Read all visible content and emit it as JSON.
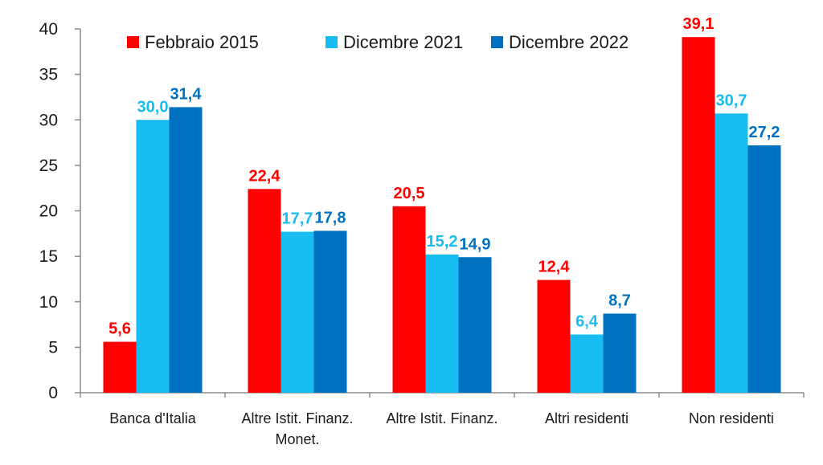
{
  "chart_data": {
    "type": "bar",
    "title": "",
    "xlabel": "",
    "ylabel": "",
    "ylim": [
      0,
      40
    ],
    "yticks": [
      "0",
      "5",
      "10",
      "15",
      "20",
      "25",
      "30",
      "35",
      "40"
    ],
    "grid": false,
    "legend_position": "top",
    "categories": [
      [
        "Banca d'Italia"
      ],
      [
        "Altre Istit. Finanz.",
        "Monet."
      ],
      [
        "Altre Istit. Finanz."
      ],
      [
        "Altri residenti"
      ],
      [
        "Non residenti"
      ]
    ],
    "series": [
      {
        "name": "Febbraio 2015",
        "color": "#ff0000",
        "values": [
          5.6,
          22.4,
          20.5,
          12.4,
          39.1
        ],
        "labels": [
          "5,6",
          "22,4",
          "20,5",
          "12,4",
          "39,1"
        ]
      },
      {
        "name": "Dicembre 2021",
        "color": "#17bdf0",
        "values": [
          30.0,
          17.7,
          15.2,
          6.4,
          30.7
        ],
        "labels": [
          "30,0",
          "17,7",
          "15,2",
          "6,4",
          "30,7"
        ]
      },
      {
        "name": "Dicembre 2022",
        "color": "#0070c0",
        "values": [
          31.4,
          17.8,
          14.9,
          8.7,
          27.2
        ],
        "labels": [
          "31,4",
          "17,8",
          "14,9",
          "8,7",
          "27,2"
        ]
      }
    ]
  }
}
